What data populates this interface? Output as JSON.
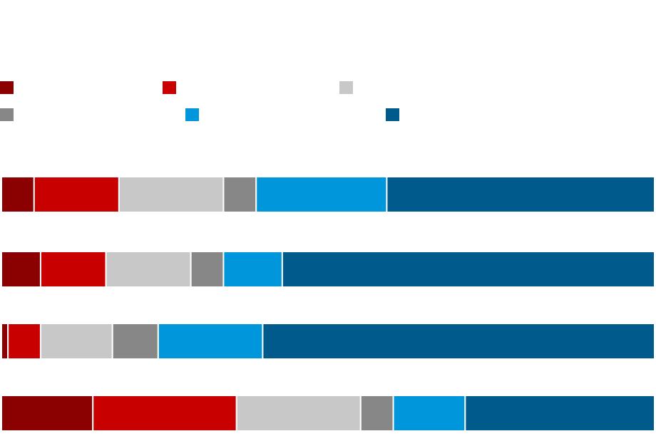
{
  "chart_data": {
    "type": "stacked-bar-horizontal",
    "xlim": [
      0,
      100
    ],
    "series": [
      {
        "color": "#8b0000",
        "values": [
          5,
          6,
          1,
          14
        ]
      },
      {
        "color": "#c80000",
        "values": [
          13,
          10,
          5,
          22
        ]
      },
      {
        "color": "#c8c8c8",
        "values": [
          16,
          13,
          11,
          19
        ]
      },
      {
        "color": "#878787",
        "values": [
          5,
          5,
          7,
          5
        ]
      },
      {
        "color": "#0096dc",
        "values": [
          20,
          9,
          16,
          11
        ]
      },
      {
        "color": "#005a8c",
        "values": [
          41,
          57,
          60,
          29
        ]
      }
    ]
  }
}
